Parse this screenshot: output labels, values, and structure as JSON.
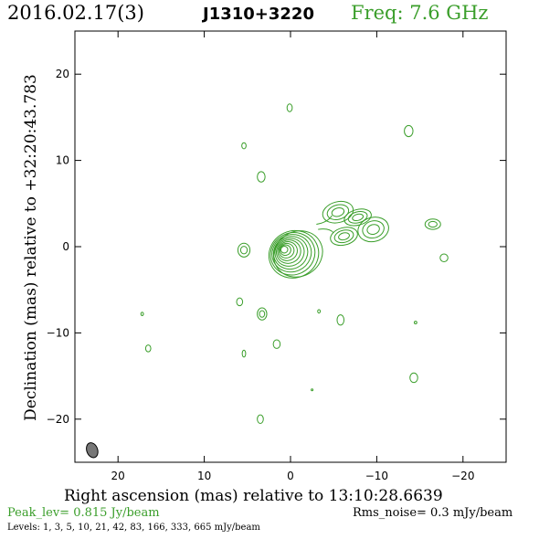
{
  "header": {
    "date": "2016.02.17(3)",
    "source": "J1310+3220",
    "freq": "Freq: 7.6 GHz"
  },
  "footer": {
    "peak": "Peak_lev=  0.815 Jy/beam",
    "rms": "Rms_noise=  0.3 mJy/beam",
    "levels": "Levels:   1,   3,   5,  10,  21,  42,  83, 166, 333, 665 mJy/beam"
  },
  "colors": {
    "contour": "#3a9e2a",
    "beam": "#777777",
    "accent_text": "#3a9e2a"
  },
  "chart_data": {
    "type": "contour",
    "xlabel": "Right ascension (mas) relative to 13:10:28.6639",
    "ylabel": "Declination (mas) relative to +32:20:43.783",
    "xlim": [
      25,
      -25
    ],
    "ylim": [
      -25,
      25
    ],
    "xticks": [
      20,
      10,
      0,
      -10,
      -20
    ],
    "xtick_labels": [
      "20",
      "10",
      "0",
      "−10",
      "−20"
    ],
    "yticks": [
      20,
      10,
      0,
      -10,
      -20
    ],
    "ytick_labels": [
      "20",
      "10",
      "0",
      "−10",
      "−20"
    ],
    "levels_mJy": [
      1,
      3,
      5,
      10,
      21,
      42,
      83,
      166,
      333,
      665
    ],
    "beam": {
      "x": 23,
      "y": -23.6,
      "major": 1.7,
      "minor": 1.2,
      "pa": -20
    },
    "core": {
      "x": -0.2,
      "y": -0.5,
      "n_contours": 10
    },
    "jet": [
      {
        "x": -5.5,
        "y": 4.0,
        "rx": 1.8,
        "ry": 1.2
      },
      {
        "x": -6.2,
        "y": 1.2,
        "rx": 1.6,
        "ry": 1.0
      },
      {
        "x": -9.6,
        "y": 2.0,
        "rx": 1.8,
        "ry": 1.4
      },
      {
        "x": -7.8,
        "y": 3.4,
        "rx": 1.6,
        "ry": 0.9
      }
    ],
    "blobs": [
      {
        "x": 0.1,
        "y": 16.1,
        "rx": 0.3,
        "ry": 0.45
      },
      {
        "x": -13.7,
        "y": 13.4,
        "rx": 0.5,
        "ry": 0.65
      },
      {
        "x": 5.4,
        "y": 11.7,
        "rx": 0.25,
        "ry": 0.35
      },
      {
        "x": 3.4,
        "y": 8.1,
        "rx": 0.45,
        "ry": 0.6
      },
      {
        "x": -16.5,
        "y": 2.6,
        "rx": 0.9,
        "ry": 0.6
      },
      {
        "x": 5.4,
        "y": -0.4,
        "rx": 0.7,
        "ry": 0.8
      },
      {
        "x": -17.8,
        "y": -1.3,
        "rx": 0.45,
        "ry": 0.45
      },
      {
        "x": 5.9,
        "y": -6.4,
        "rx": 0.35,
        "ry": 0.45
      },
      {
        "x": 17.2,
        "y": -7.8,
        "rx": 0.15,
        "ry": 0.2
      },
      {
        "x": 3.3,
        "y": -7.8,
        "rx": 0.55,
        "ry": 0.7
      },
      {
        "x": -3.3,
        "y": -7.5,
        "rx": 0.15,
        "ry": 0.2
      },
      {
        "x": -5.8,
        "y": -8.5,
        "rx": 0.4,
        "ry": 0.6
      },
      {
        "x": -14.5,
        "y": -8.8,
        "rx": 0.15,
        "ry": 0.15
      },
      {
        "x": 1.6,
        "y": -11.3,
        "rx": 0.4,
        "ry": 0.5
      },
      {
        "x": 16.5,
        "y": -11.8,
        "rx": 0.3,
        "ry": 0.4
      },
      {
        "x": 5.4,
        "y": -12.4,
        "rx": 0.2,
        "ry": 0.4
      },
      {
        "x": -14.3,
        "y": -15.2,
        "rx": 0.45,
        "ry": 0.55
      },
      {
        "x": -2.5,
        "y": -16.6,
        "rx": 0.1,
        "ry": 0.1
      },
      {
        "x": 3.5,
        "y": -20.0,
        "rx": 0.35,
        "ry": 0.5
      }
    ]
  }
}
